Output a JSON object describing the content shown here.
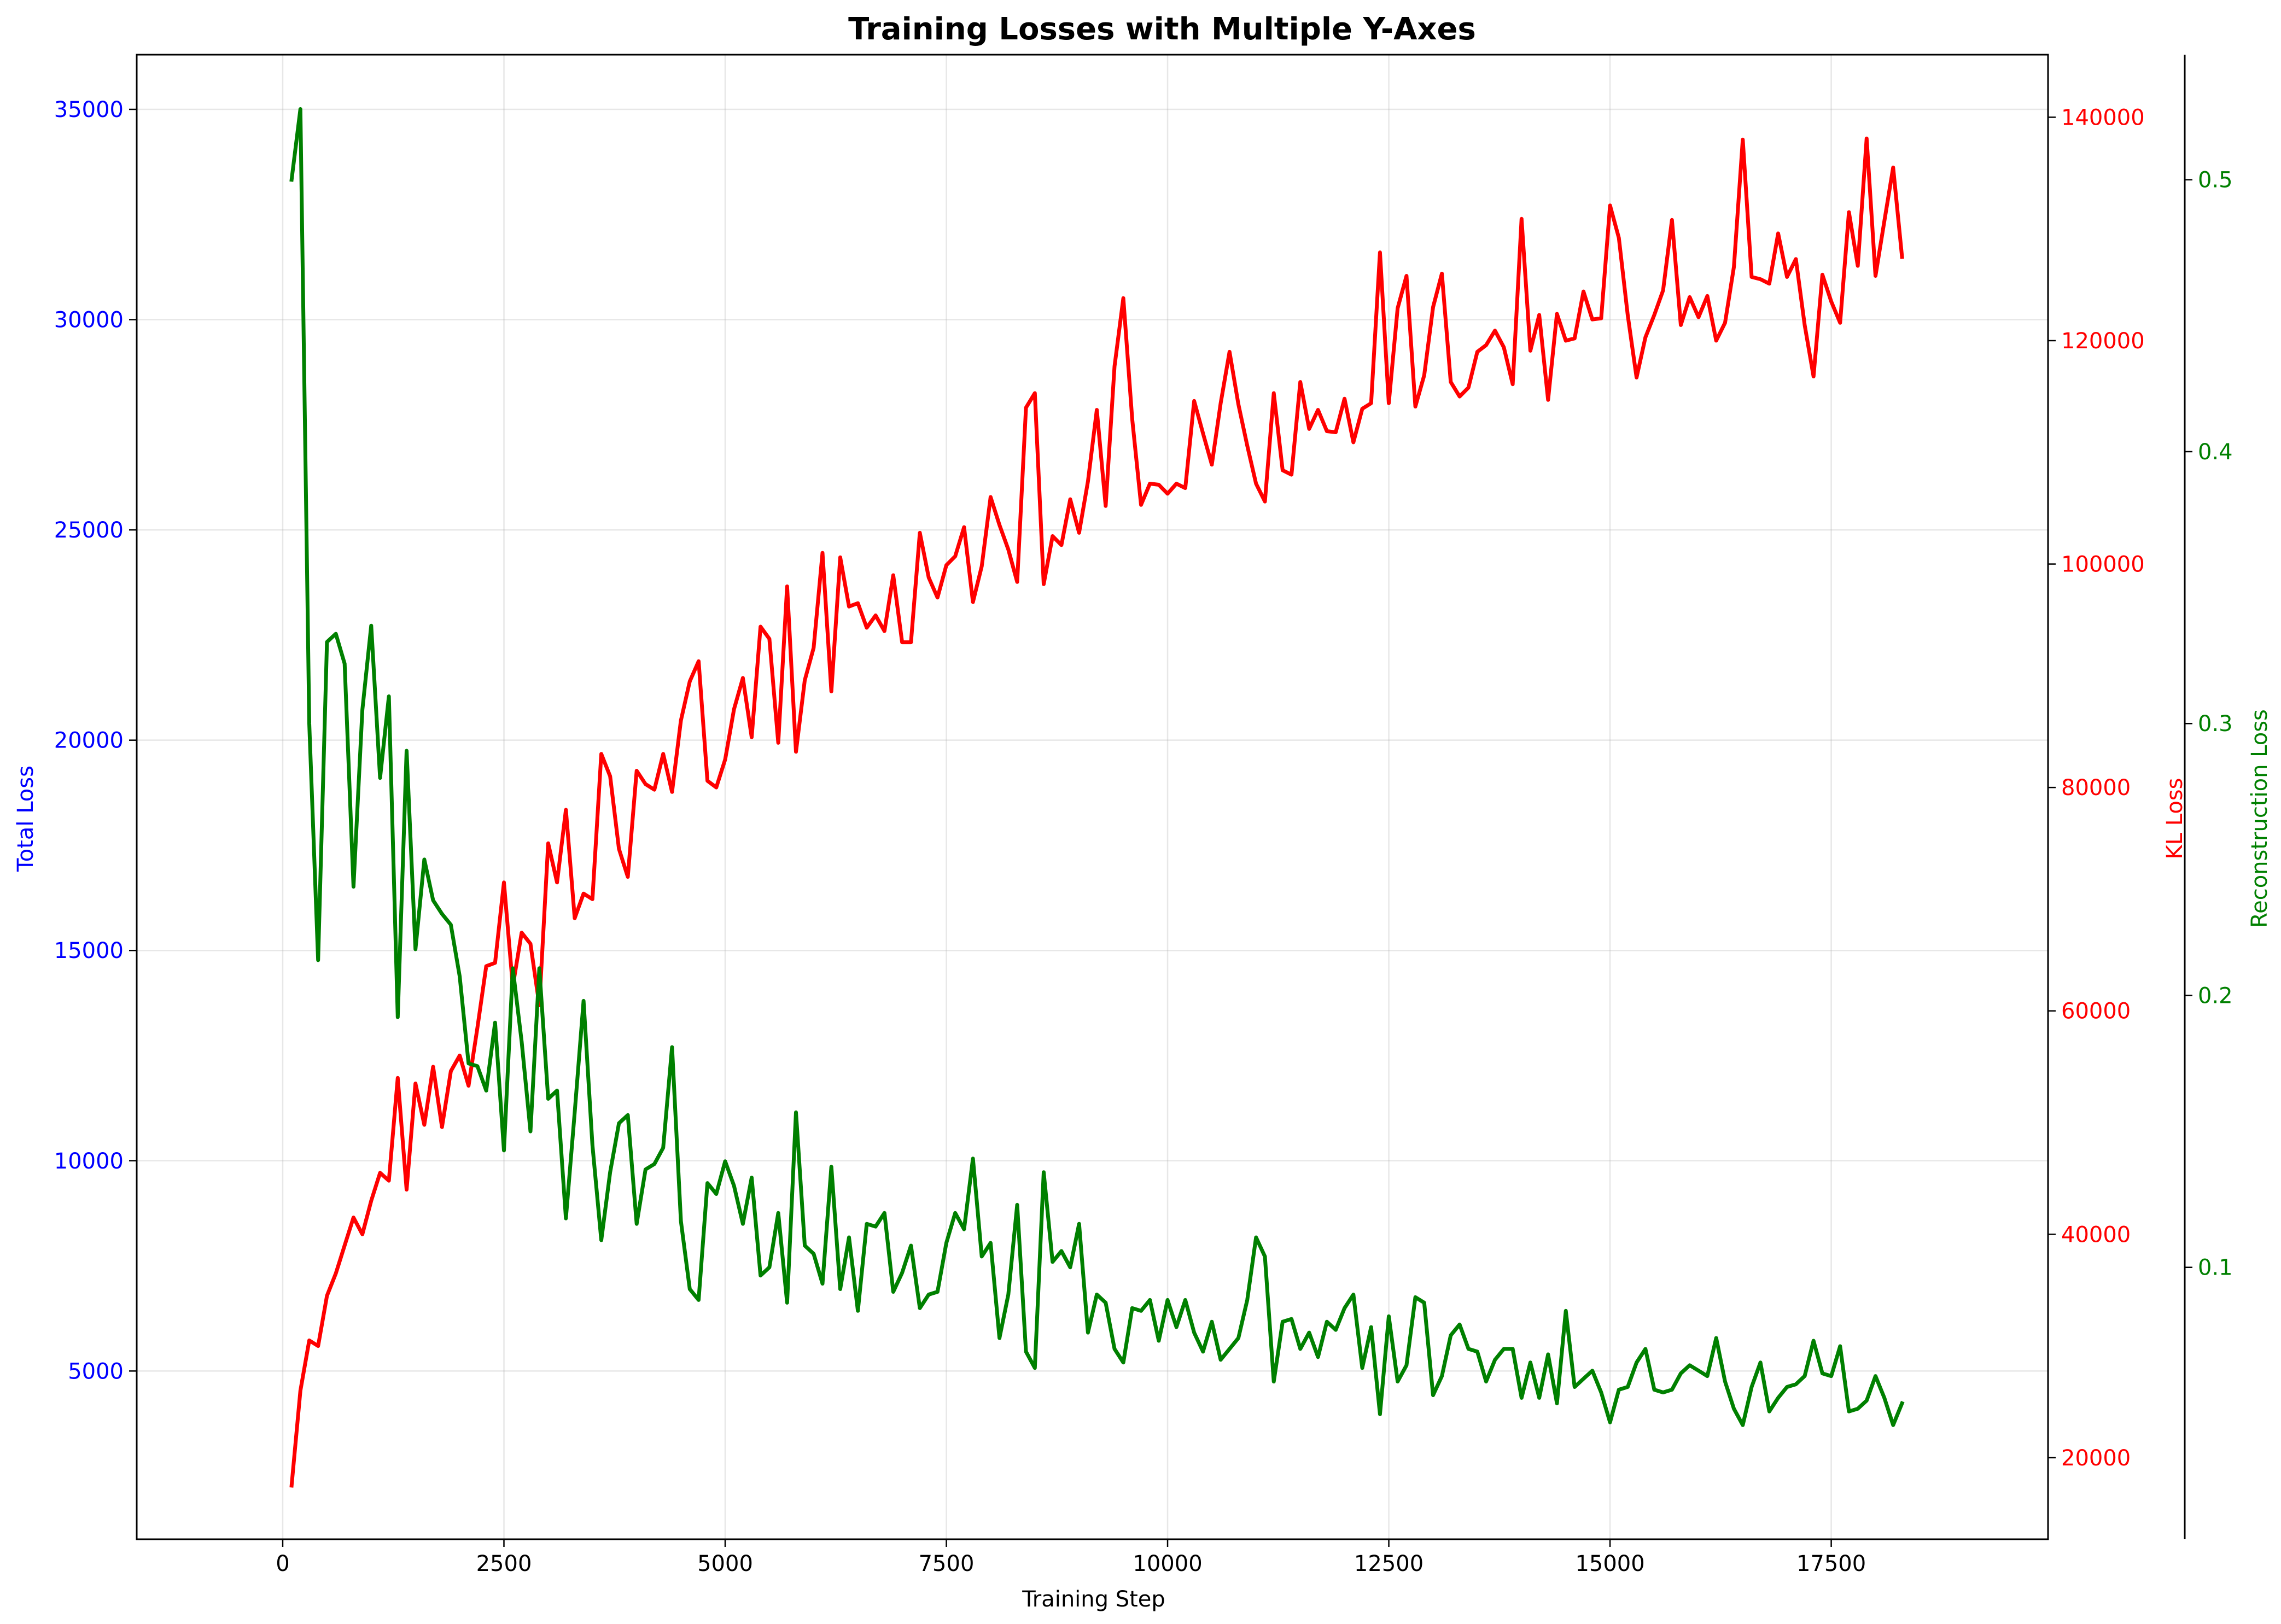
{
  "chart_data": {
    "type": "line",
    "title": "Training Losses with Multiple Y-Axes",
    "xlabel": "Training Step",
    "xlim": [
      -1650,
      19950
    ],
    "xticks": [
      0,
      2500,
      5000,
      7500,
      10000,
      12500,
      15000,
      17500
    ],
    "grid": true,
    "axes": [
      {
        "id": "y1",
        "label": "Total Loss",
        "side": "left",
        "color": "#0000ff",
        "ylim": [
          1000,
          36300
        ],
        "ticks": [
          5000,
          10000,
          15000,
          20000,
          25000,
          30000,
          35000
        ]
      },
      {
        "id": "y2",
        "label": "KL Loss",
        "side": "right",
        "color": "#ff0000",
        "ylim": [
          12700,
          145600
        ],
        "ticks": [
          20000,
          40000,
          60000,
          80000,
          100000,
          120000,
          140000
        ]
      },
      {
        "id": "y3",
        "label": "Reconstruction Loss",
        "side": "right-outer",
        "color": "#008000",
        "ylim": [
          0.0,
          0.546
        ],
        "ticks": [
          0.1,
          0.2,
          0.3,
          0.4,
          0.5
        ]
      }
    ],
    "series": [
      {
        "name": "KL Loss",
        "axis": "y2",
        "color": "#ff0000",
        "x": [
          100,
          200,
          300,
          400,
          500,
          600,
          700,
          800,
          900,
          1000,
          1100,
          1200,
          1300,
          1400,
          1500,
          1600,
          1700,
          1800,
          1900,
          2000,
          2100,
          2200,
          2300,
          2400,
          2500,
          2600,
          2700,
          2800,
          2900,
          3000,
          3100,
          3200,
          3300,
          3400,
          3500,
          3600,
          3700,
          3800,
          3900,
          4000,
          4100,
          4200,
          4300,
          4400,
          4500,
          4600,
          4700,
          4800,
          4900,
          5000,
          5100,
          5200,
          5300,
          5400,
          5500,
          5600,
          5700,
          5800,
          5900,
          6000,
          6100,
          6200,
          6300,
          6400,
          6500,
          6600,
          6700,
          6800,
          6900,
          7000,
          7100,
          7200,
          7300,
          7400,
          7500,
          7600,
          7700,
          7800,
          7900,
          8000,
          8100,
          8200,
          8300,
          8400,
          8500,
          8600,
          8700,
          8800,
          8900,
          9000,
          9100,
          9200,
          9300,
          9400,
          9500,
          9600,
          9700,
          9800,
          9900,
          10000,
          10100,
          10200,
          10300,
          10400,
          10500,
          10600,
          10700,
          10800,
          10900,
          11000,
          11100,
          11200,
          11300,
          11400,
          11500,
          11600,
          11700,
          11800,
          11900,
          12000,
          12100,
          12200,
          12300,
          12400,
          12500,
          12600,
          12700,
          12800,
          12900,
          13000,
          13100,
          13200,
          13300,
          13400,
          13500,
          13600,
          13700,
          13800,
          13900,
          14000,
          14100,
          14200,
          14300,
          14400,
          14500,
          14600,
          14700,
          14800,
          14900,
          15000,
          15100,
          15200,
          15300,
          15400,
          15500,
          15600,
          15700,
          15800,
          15900,
          16000,
          16100,
          16200,
          16300,
          16400,
          16500,
          16600,
          16700,
          16800,
          16900,
          17000,
          17100,
          17200,
          17300,
          17400,
          17500,
          17600,
          17700,
          17800,
          17900,
          18000,
          18100,
          18200,
          18300
        ],
        "y": [
          17500,
          26000,
          30500,
          30000,
          34500,
          36500,
          39000,
          41500,
          40000,
          43000,
          45500,
          44800,
          54000,
          44000,
          53500,
          49800,
          55000,
          49600,
          54600,
          56000,
          53300,
          58500,
          64000,
          64300,
          71500,
          62200,
          67000,
          66000,
          60500,
          75000,
          71500,
          78000,
          68300,
          70500,
          70000,
          83000,
          81000,
          74500,
          72000,
          81500,
          80300,
          79800,
          83000,
          79600,
          86000,
          89500,
          91300,
          80600,
          80000,
          82500,
          87000,
          89800,
          84500,
          94400,
          93300,
          84000,
          98000,
          83200,
          89600,
          92500,
          101000,
          88600,
          100600,
          96200,
          96500,
          94300,
          95400,
          94000,
          99000,
          93000,
          93000,
          102800,
          98800,
          97000,
          99900,
          100700,
          103300,
          96600,
          99800,
          106000,
          103500,
          101300,
          98400,
          114000,
          115300,
          98200,
          102500,
          101700,
          105800,
          102800,
          107400,
          113800,
          105200,
          117700,
          123800,
          113000,
          105300,
          107200,
          107100,
          106300,
          107200,
          106800,
          114600,
          111700,
          108900,
          114400,
          119000,
          114300,
          110600,
          107200,
          105600,
          115300,
          108400,
          108000,
          116300,
          112100,
          113800,
          111900,
          111800,
          114800,
          110900,
          113900,
          114400,
          127900,
          114400,
          122900,
          125800,
          114100,
          116900,
          123000,
          126000,
          116300,
          115000,
          115800,
          119000,
          119600,
          120900,
          119400,
          116100,
          130900,
          119100,
          122300,
          114700,
          122400,
          120000,
          120200,
          124400,
          121900,
          122000,
          132100,
          129200,
          122300,
          116700,
          120300,
          122300,
          124500,
          130800,
          121400,
          123900,
          122100,
          124000,
          120000,
          121600,
          126600,
          138000,
          125700,
          125500,
          125100,
          129600,
          125700,
          127300,
          121400,
          116800,
          125900,
          123500,
          121600,
          131500,
          126700,
          138100,
          125800,
          130700,
          135500,
          127500
        ]
      },
      {
        "name": "Reconstruction Loss",
        "axis": "y3",
        "color": "#008000",
        "x": [
          100,
          200,
          300,
          400,
          500,
          600,
          700,
          800,
          900,
          1000,
          1100,
          1200,
          1300,
          1400,
          1500,
          1600,
          1700,
          1800,
          1900,
          2000,
          2100,
          2200,
          2300,
          2400,
          2500,
          2600,
          2700,
          2800,
          2900,
          3000,
          3100,
          3200,
          3300,
          3400,
          3500,
          3600,
          3700,
          3800,
          3900,
          4000,
          4100,
          4200,
          4300,
          4400,
          4500,
          4600,
          4700,
          4800,
          4900,
          5000,
          5100,
          5200,
          5300,
          5400,
          5500,
          5600,
          5700,
          5800,
          5900,
          6000,
          6100,
          6200,
          6300,
          6400,
          6500,
          6600,
          6700,
          6800,
          6900,
          7000,
          7100,
          7200,
          7300,
          7400,
          7500,
          7600,
          7700,
          7800,
          7900,
          8000,
          8100,
          8200,
          8300,
          8400,
          8500,
          8600,
          8700,
          8800,
          8900,
          9000,
          9100,
          9200,
          9300,
          9400,
          9500,
          9600,
          9700,
          9800,
          9900,
          10000,
          10100,
          10200,
          10300,
          10400,
          10500,
          10600,
          10700,
          10800,
          10900,
          11000,
          11100,
          11200,
          11300,
          11400,
          11500,
          11600,
          11700,
          11800,
          11900,
          12000,
          12100,
          12200,
          12300,
          12400,
          12500,
          12600,
          12700,
          12800,
          12900,
          13000,
          13100,
          13200,
          13300,
          13400,
          13500,
          13600,
          13700,
          13800,
          13900,
          14000,
          14100,
          14200,
          14300,
          14400,
          14500,
          14600,
          14700,
          14800,
          14900,
          15000,
          15100,
          15200,
          15300,
          15400,
          15500,
          15600,
          15700,
          15800,
          15900,
          16000,
          16100,
          16200,
          16300,
          16400,
          16500,
          16600,
          16700,
          16800,
          16900,
          17000,
          17100,
          17200,
          17300,
          17400,
          17500,
          17600,
          17700,
          17800,
          17900,
          18000,
          18100,
          18200,
          18300
        ],
        "y": [
          0.5,
          0.526,
          0.3,
          0.213,
          0.33,
          0.333,
          0.322,
          0.24,
          0.305,
          0.336,
          0.28,
          0.31,
          0.192,
          0.29,
          0.217,
          0.25,
          0.235,
          0.23,
          0.226,
          0.207,
          0.175,
          0.174,
          0.165,
          0.19,
          0.143,
          0.21,
          0.183,
          0.15,
          0.21,
          0.162,
          0.165,
          0.118,
          0.157,
          0.198,
          0.145,
          0.11,
          0.135,
          0.153,
          0.156,
          0.116,
          0.136,
          0.138,
          0.144,
          0.181,
          0.117,
          0.092,
          0.088,
          0.131,
          0.127,
          0.139,
          0.13,
          0.116,
          0.133,
          0.097,
          0.1,
          0.12,
          0.087,
          0.157,
          0.108,
          0.105,
          0.094,
          0.137,
          0.092,
          0.111,
          0.084,
          0.116,
          0.115,
          0.12,
          0.091,
          0.098,
          0.108,
          0.085,
          0.09,
          0.091,
          0.109,
          0.12,
          0.114,
          0.14,
          0.104,
          0.109,
          0.074,
          0.09,
          0.123,
          0.069,
          0.063,
          0.135,
          0.102,
          0.106,
          0.1,
          0.116,
          0.076,
          0.09,
          0.087,
          0.07,
          0.065,
          0.085,
          0.084,
          0.088,
          0.073,
          0.088,
          0.078,
          0.088,
          0.076,
          0.069,
          0.08,
          0.066,
          0.07,
          0.074,
          0.088,
          0.111,
          0.104,
          0.058,
          0.08,
          0.081,
          0.07,
          0.076,
          0.067,
          0.08,
          0.077,
          0.085,
          0.09,
          0.063,
          0.078,
          0.046,
          0.082,
          0.058,
          0.064,
          0.089,
          0.087,
          0.053,
          0.06,
          0.075,
          0.079,
          0.07,
          0.069,
          0.058,
          0.066,
          0.07,
          0.07,
          0.052,
          0.065,
          0.052,
          0.068,
          0.05,
          0.084,
          0.056,
          0.059,
          0.062,
          0.054,
          0.043,
          0.055,
          0.056,
          0.065,
          0.07,
          0.055,
          0.054,
          0.055,
          0.061,
          0.064,
          0.062,
          0.06,
          0.074,
          0.058,
          0.048,
          0.042,
          0.056,
          0.065,
          0.047,
          0.052,
          0.056,
          0.057,
          0.06,
          0.073,
          0.061,
          0.06,
          0.071,
          0.047,
          0.048,
          0.051,
          0.06,
          0.052,
          0.042,
          0.05
        ]
      }
    ]
  }
}
